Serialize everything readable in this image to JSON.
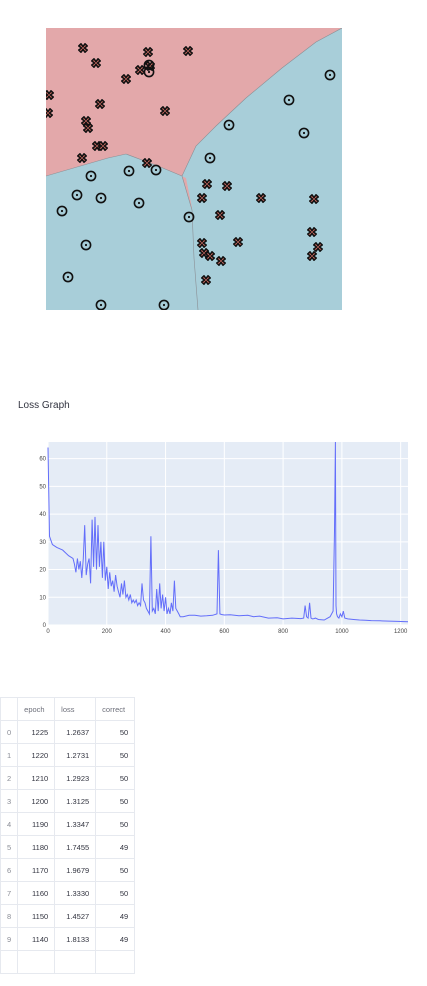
{
  "decision_plot": {
    "colors": {
      "class_x": "#e3a8aa",
      "class_o": "#a8ced9",
      "marker_x_fill": "#e9796f",
      "marker_stroke": "#111111"
    }
  },
  "loss_section": {
    "title": "Loss Graph"
  },
  "chart_data": {
    "type": "line",
    "title": "",
    "xlabel": "",
    "ylabel": "",
    "xlim": [
      0,
      1225
    ],
    "ylim": [
      0,
      66
    ],
    "x_ticks": [
      0,
      200,
      400,
      600,
      800,
      1000,
      1200
    ],
    "y_ticks": [
      0,
      10,
      20,
      30,
      40,
      50,
      60
    ],
    "grid": true,
    "line_color": "#636efa",
    "plot_bg": "#e5ecf6",
    "series": [
      {
        "x": [
          0,
          5,
          15,
          30,
          50,
          70,
          85,
          90,
          95,
          100,
          105,
          110,
          115,
          120,
          125,
          130,
          135,
          140,
          145,
          150,
          155,
          160,
          165,
          170,
          175,
          180,
          185,
          190,
          195,
          200,
          205,
          210,
          215,
          220,
          225,
          230,
          235,
          240,
          245,
          250,
          255,
          260,
          265,
          270,
          275,
          280,
          285,
          290,
          295,
          300,
          305,
          310,
          315,
          320,
          325,
          330,
          335,
          340,
          345,
          350,
          355,
          360,
          365,
          370,
          375,
          380,
          385,
          390,
          395,
          400,
          405,
          410,
          415,
          420,
          425,
          430,
          435,
          440,
          445,
          450,
          460,
          480,
          500,
          520,
          540,
          560,
          575,
          580,
          585,
          590,
          600,
          620,
          650,
          680,
          700,
          720,
          750,
          780,
          800,
          830,
          860,
          870,
          875,
          880,
          885,
          890,
          895,
          900,
          905,
          910,
          920,
          940,
          960,
          970,
          975,
          978,
          980,
          982,
          985,
          990,
          995,
          1000,
          1005,
          1010,
          1020,
          1040,
          1060,
          1080,
          1100,
          1130,
          1160,
          1190,
          1225
        ],
        "y": [
          64,
          32,
          29,
          28,
          27,
          25,
          24,
          22,
          19,
          24,
          20,
          23,
          17,
          24,
          36,
          18,
          22,
          24,
          15,
          38,
          21,
          39,
          20,
          36,
          21,
          30,
          17,
          30,
          16,
          21,
          13,
          19,
          14,
          16,
          12,
          18,
          14,
          12,
          10,
          15,
          11,
          16,
          10,
          11,
          9,
          11,
          8,
          9,
          8,
          9,
          7,
          8,
          7,
          15,
          9,
          8,
          6,
          5,
          4,
          32,
          5,
          6,
          4,
          13,
          5,
          15,
          6,
          11,
          5,
          10,
          4,
          6,
          4,
          8,
          5,
          16,
          6,
          5,
          4,
          3,
          3,
          3.5,
          3.5,
          3.2,
          3.3,
          3.5,
          4,
          27,
          4,
          3.8,
          3.6,
          3.7,
          3.3,
          3.5,
          3,
          3.2,
          2.5,
          2.6,
          2.2,
          2.5,
          2.3,
          2.5,
          7,
          3,
          2.5,
          8,
          2.5,
          2.2,
          2.3,
          2.5,
          2,
          1.8,
          3,
          5,
          34,
          66,
          7,
          4,
          3,
          2.5,
          4,
          3,
          5,
          2.5,
          2.2,
          2,
          1.8,
          1.7,
          1.6,
          1.5,
          1.4,
          1.3,
          1.2
        ]
      }
    ]
  },
  "table": {
    "columns": [
      "epoch",
      "loss",
      "correct"
    ],
    "rows": [
      {
        "index": "0",
        "epoch": "1225",
        "loss": "1.2637",
        "correct": "50"
      },
      {
        "index": "1",
        "epoch": "1220",
        "loss": "1.2731",
        "correct": "50"
      },
      {
        "index": "2",
        "epoch": "1210",
        "loss": "1.2923",
        "correct": "50"
      },
      {
        "index": "3",
        "epoch": "1200",
        "loss": "1.3125",
        "correct": "50"
      },
      {
        "index": "4",
        "epoch": "1190",
        "loss": "1.3347",
        "correct": "50"
      },
      {
        "index": "5",
        "epoch": "1180",
        "loss": "1.7455",
        "correct": "49"
      },
      {
        "index": "6",
        "epoch": "1170",
        "loss": "1.9679",
        "correct": "50"
      },
      {
        "index": "7",
        "epoch": "1160",
        "loss": "1.3330",
        "correct": "50"
      },
      {
        "index": "8",
        "epoch": "1150",
        "loss": "1.4527",
        "correct": "49"
      },
      {
        "index": "9",
        "epoch": "1140",
        "loss": "1.8133",
        "correct": "49"
      },
      {
        "index": "",
        "epoch": "",
        "loss": "",
        "correct": ""
      }
    ]
  }
}
